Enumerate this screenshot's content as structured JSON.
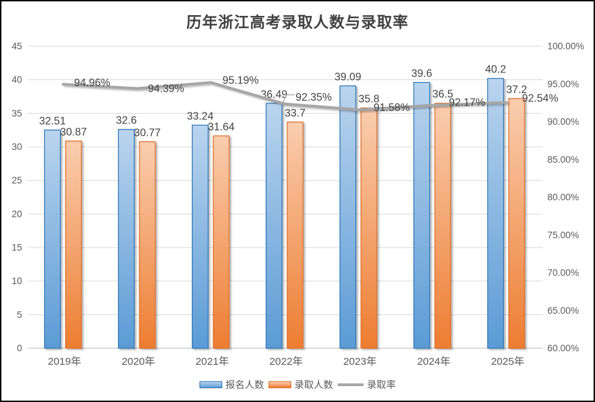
{
  "title": "历年浙江高考录取人数与录取率",
  "chart_data": {
    "type": "bar",
    "combo": "clustered bars on primary axis + line on secondary axis",
    "title": "历年浙江高考录取人数与录取率",
    "categories": [
      "2019年",
      "2020年",
      "2021年",
      "2022年",
      "2023年",
      "2024年",
      "2025年"
    ],
    "series": [
      {
        "name": "报名人数",
        "kind": "bar",
        "axis": "primary",
        "values": [
          32.51,
          32.6,
          33.24,
          36.49,
          39.09,
          39.6,
          40.2
        ],
        "labels": [
          "32.51",
          "32.6",
          "33.24",
          "36.49",
          "39.09",
          "39.6",
          "40.2"
        ]
      },
      {
        "name": "录取人数",
        "kind": "bar",
        "axis": "primary",
        "values": [
          30.87,
          30.77,
          31.64,
          33.7,
          35.8,
          36.5,
          37.2
        ],
        "labels": [
          "30.87",
          "30.77",
          "31.64",
          "33.7",
          "35.8",
          "36.5",
          "37.2"
        ]
      },
      {
        "name": "录取率",
        "kind": "line",
        "axis": "secondary",
        "values": [
          94.96,
          94.39,
          95.19,
          92.35,
          91.58,
          92.17,
          92.54
        ],
        "labels": [
          "94.96%",
          "94.39%",
          "95.19%",
          "92.35%",
          "91.58%",
          "92.17%",
          "92.54%"
        ]
      }
    ],
    "primary_axis": {
      "min": 0,
      "max": 45,
      "step": 5,
      "ticks": [
        "45",
        "40",
        "35",
        "30",
        "25",
        "20",
        "15",
        "10",
        "5",
        "0"
      ]
    },
    "secondary_axis": {
      "min": 60,
      "max": 100,
      "step": 5,
      "ticks": [
        "100.00%",
        "95.00%",
        "90.00%",
        "85.00%",
        "80.00%",
        "75.00%",
        "70.00%",
        "65.00%",
        "60.00%"
      ]
    },
    "legend": [
      {
        "label": "报名人数",
        "type": "bar"
      },
      {
        "label": "录取人数",
        "type": "bar"
      },
      {
        "label": "录取率",
        "type": "line"
      }
    ],
    "legend_position": "bottom",
    "grid": true
  },
  "colors": {
    "bar1_fill": "#5B9BD5",
    "bar1_light": "#BAD4EE",
    "bar1_border": "#2E75B6",
    "bar2_fill": "#ED7D31",
    "bar2_light": "#FACDAF",
    "bar2_border": "#D96B27",
    "line": "#A6A6A6",
    "grid": "#D9D9D9",
    "axis_line": "#C6C6C6",
    "data_label": "#404040",
    "tick_label": "#595959",
    "title": "#404040"
  }
}
